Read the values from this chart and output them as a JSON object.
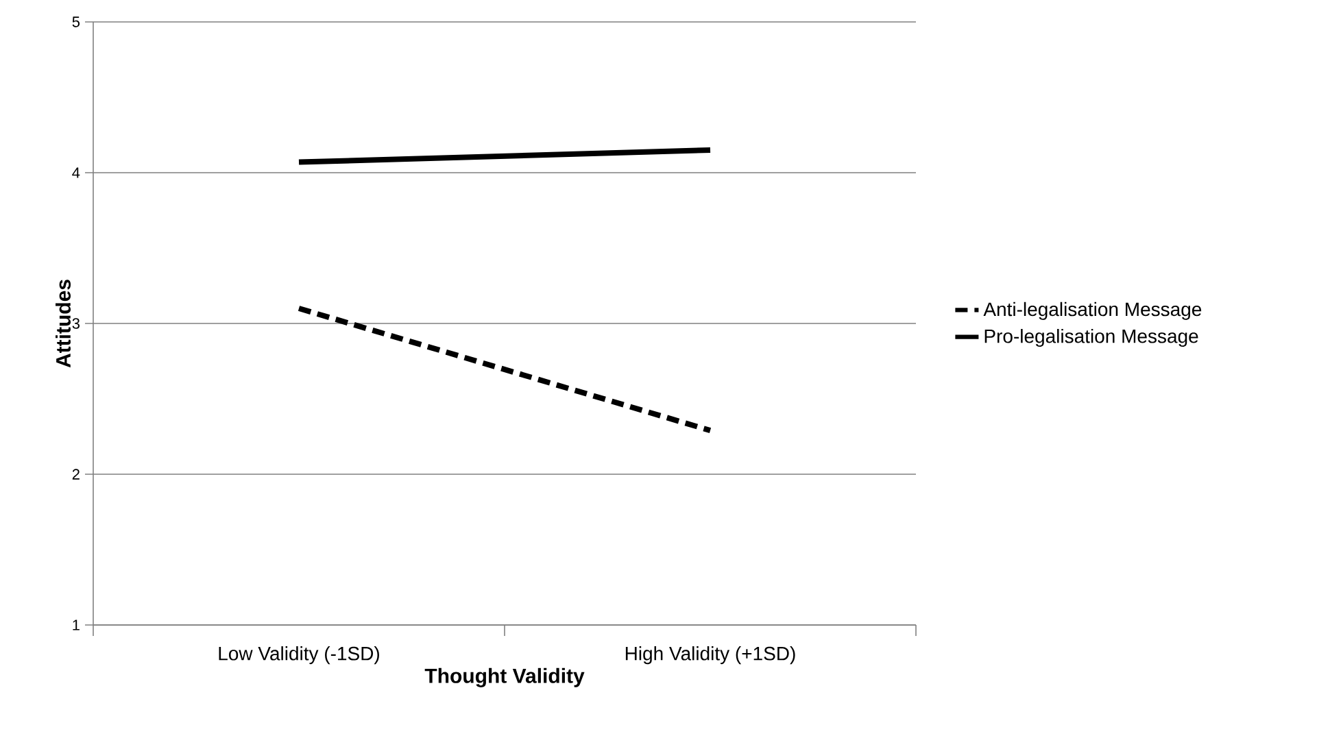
{
  "chart_data": {
    "type": "line",
    "xlabel": "Thought Validity",
    "ylabel": "Attitudes",
    "categories": [
      "Low Validity (-1SD)",
      "High Validity  (+1SD)"
    ],
    "series": [
      {
        "name": "Anti-legalisation Message",
        "color": "#000000",
        "values": [
          3.1,
          2.29
        ],
        "line_style": "dashed"
      },
      {
        "name": "Pro-legalisation Message",
        "color": "#000000",
        "values": [
          4.07,
          4.15
        ],
        "line_style": "solid"
      }
    ],
    "ylim": [
      1,
      5
    ],
    "yticks": [
      1,
      2,
      3,
      4,
      5
    ],
    "grid": "y",
    "legend": "right",
    "marker": "none"
  }
}
